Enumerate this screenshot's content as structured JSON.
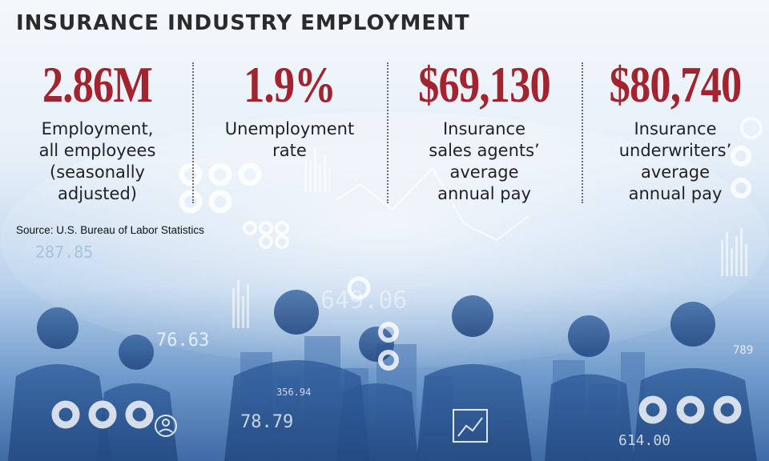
{
  "title": "INSURANCE INDUSTRY EMPLOYMENT",
  "stats": [
    {
      "value": "2.86M",
      "label": "Employment,\nall employees\n(seasonally\nadjusted)"
    },
    {
      "value": "1.9%",
      "label": "Unemployment\nrate"
    },
    {
      "value": "$69,130",
      "label": "Insurance\nsales agents’\naverage\nannual pay"
    },
    {
      "value": "$80,740",
      "label": "Insurance\nunderwriters’\naverage\nannual pay"
    }
  ],
  "source": "Source: U.S. Bureau of Labor Statistics",
  "background": {
    "numbers": [
      "287.85",
      "76.63",
      "649.06",
      "356.94",
      "78.79",
      "789",
      "614.00"
    ]
  },
  "colors": {
    "value_red": "#a3232e",
    "title_dark": "#2b2b2b",
    "bg_blue": "#3f6aa6"
  }
}
